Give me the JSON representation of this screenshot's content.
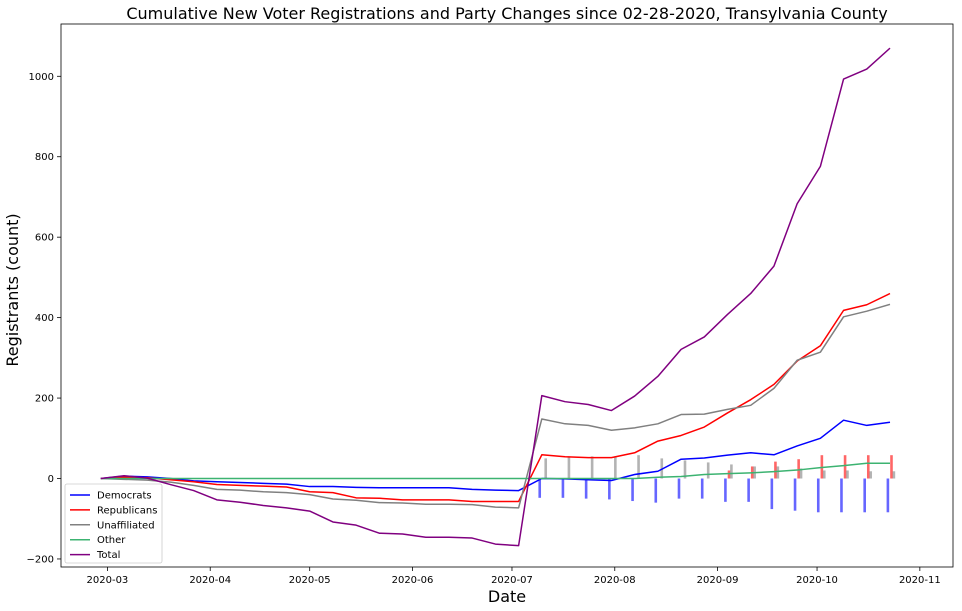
{
  "chart_data": {
    "type": "line",
    "title": "Cumulative New Voter Registrations and Party Changes since 02-28-2020, Transylvania County",
    "xlabel": "Date",
    "ylabel": "Registrants (count)",
    "xlim": [
      "2020-02-16",
      "2020-11-11"
    ],
    "ylim": [
      -220,
      1130
    ],
    "x_ticks": [
      "2020-03",
      "2020-04",
      "2020-05",
      "2020-06",
      "2020-07",
      "2020-08",
      "2020-09",
      "2020-10",
      "2020-11"
    ],
    "y_ticks": [
      -200,
      0,
      200,
      400,
      600,
      800,
      1000
    ],
    "grid": false,
    "legend_position": "bottom-left",
    "x": [
      "2020-02-28",
      "2020-03-06",
      "2020-03-13",
      "2020-03-20",
      "2020-03-27",
      "2020-04-03",
      "2020-04-10",
      "2020-04-17",
      "2020-04-24",
      "2020-05-01",
      "2020-05-08",
      "2020-05-15",
      "2020-05-22",
      "2020-05-29",
      "2020-06-05",
      "2020-06-12",
      "2020-06-19",
      "2020-06-26",
      "2020-07-03",
      "2020-07-10",
      "2020-07-17",
      "2020-07-24",
      "2020-07-31",
      "2020-08-07",
      "2020-08-14",
      "2020-08-21",
      "2020-08-28",
      "2020-09-04",
      "2020-09-11",
      "2020-09-18",
      "2020-09-25",
      "2020-10-02",
      "2020-10-09",
      "2020-10-16",
      "2020-10-23"
    ],
    "series": [
      {
        "name": "Democrats",
        "color": "#0000ff",
        "values": [
          0,
          6,
          4,
          0,
          -6,
          -8,
          -10,
          -12,
          -14,
          -20,
          -20,
          -22,
          -23,
          -23,
          -23,
          -23,
          -27,
          -29,
          -30,
          0,
          -1,
          -3,
          -5,
          10,
          18,
          48,
          51,
          58,
          64,
          59,
          81,
          100,
          145,
          132,
          140
        ]
      },
      {
        "name": "Republicans",
        "color": "#ff0000",
        "values": [
          0,
          3,
          2,
          -3,
          -8,
          -15,
          -17,
          -19,
          -21,
          -33,
          -35,
          -48,
          -49,
          -53,
          -53,
          -53,
          -57,
          -57,
          -57,
          59,
          54,
          52,
          52,
          64,
          93,
          107,
          128,
          163,
          196,
          234,
          292,
          330,
          418,
          432,
          460
        ]
      },
      {
        "name": "Unaffiliated",
        "color": "#808080",
        "values": [
          0,
          -2,
          -4,
          -9,
          -17,
          -27,
          -29,
          -33,
          -35,
          -40,
          -51,
          -54,
          -60,
          -61,
          -64,
          -64,
          -65,
          -71,
          -73,
          148,
          136,
          132,
          120,
          126,
          136,
          159,
          160,
          172,
          182,
          224,
          294,
          314,
          402,
          416,
          433
        ]
      },
      {
        "name": "Other",
        "color": "#3cb371",
        "values": [
          0,
          0,
          0,
          0,
          0,
          0,
          0,
          0,
          0,
          0,
          0,
          0,
          0,
          0,
          0,
          0,
          0,
          0,
          0,
          0,
          0,
          0,
          0,
          0,
          3,
          5,
          10,
          12,
          14,
          17,
          21,
          27,
          32,
          38,
          38
        ]
      },
      {
        "name": "Total",
        "color": "#800080",
        "values": [
          0,
          7,
          1,
          -15,
          -30,
          -53,
          -59,
          -67,
          -73,
          -81,
          -108,
          -116,
          -136,
          -138,
          -146,
          -146,
          -148,
          -163,
          -167,
          206,
          191,
          184,
          169,
          205,
          254,
          321,
          352,
          408,
          460,
          528,
          683,
          776,
          993,
          1018,
          1070
        ]
      }
    ],
    "bars": {
      "x": [
        "2020-07-10",
        "2020-07-17",
        "2020-07-24",
        "2020-07-31",
        "2020-08-07",
        "2020-08-14",
        "2020-08-21",
        "2020-08-28",
        "2020-09-04",
        "2020-09-11",
        "2020-09-18",
        "2020-09-25",
        "2020-10-02",
        "2020-10-09",
        "2020-10-16",
        "2020-10-23"
      ],
      "series": [
        {
          "color": "#0000ff",
          "values": [
            -48,
            -48,
            -50,
            -52,
            -56,
            -60,
            -50,
            -50,
            -58,
            -58,
            -76,
            -80,
            -84,
            -84,
            -84,
            -84
          ]
        },
        {
          "color": "#ff0000",
          "values": [
            0,
            0,
            0,
            0,
            0,
            0,
            0,
            0,
            20,
            30,
            42,
            48,
            58,
            58,
            58,
            58
          ]
        },
        {
          "color": "#808080",
          "values": [
            50,
            55,
            55,
            55,
            58,
            50,
            45,
            40,
            35,
            30,
            30,
            25,
            20,
            20,
            18,
            18
          ]
        }
      ]
    }
  }
}
